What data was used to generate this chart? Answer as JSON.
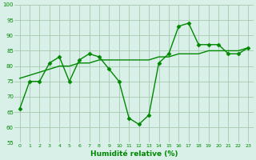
{
  "title": "",
  "xlabel": "Humidité relative (%)",
  "background_color": "#d8f0e8",
  "grid_color": "#a8c8b0",
  "line_color": "#008800",
  "marker_color": "#008800",
  "ylim": [
    55,
    100
  ],
  "xlim": [
    -0.5,
    23.5
  ],
  "yticks": [
    55,
    60,
    65,
    70,
    75,
    80,
    85,
    90,
    95,
    100
  ],
  "xticks": [
    0,
    1,
    2,
    3,
    4,
    5,
    6,
    7,
    8,
    9,
    10,
    11,
    12,
    13,
    14,
    15,
    16,
    17,
    18,
    19,
    20,
    21,
    22,
    23
  ],
  "x": [
    0,
    1,
    2,
    3,
    4,
    5,
    6,
    7,
    8,
    9,
    10,
    11,
    12,
    13,
    14,
    15,
    16,
    17,
    18,
    19,
    20,
    21,
    22,
    23
  ],
  "y_line1": [
    66,
    75,
    75,
    81,
    83,
    75,
    82,
    84,
    83,
    79,
    75,
    63,
    61,
    64,
    81,
    84,
    93,
    94,
    87,
    87,
    87,
    84,
    84,
    86
  ],
  "y_line2": [
    76,
    77,
    78,
    79,
    80,
    80,
    81,
    81,
    82,
    82,
    82,
    82,
    82,
    82,
    83,
    83,
    84,
    84,
    84,
    85,
    85,
    85,
    85,
    86
  ],
  "marker_size": 2.5,
  "line_width": 1.0
}
